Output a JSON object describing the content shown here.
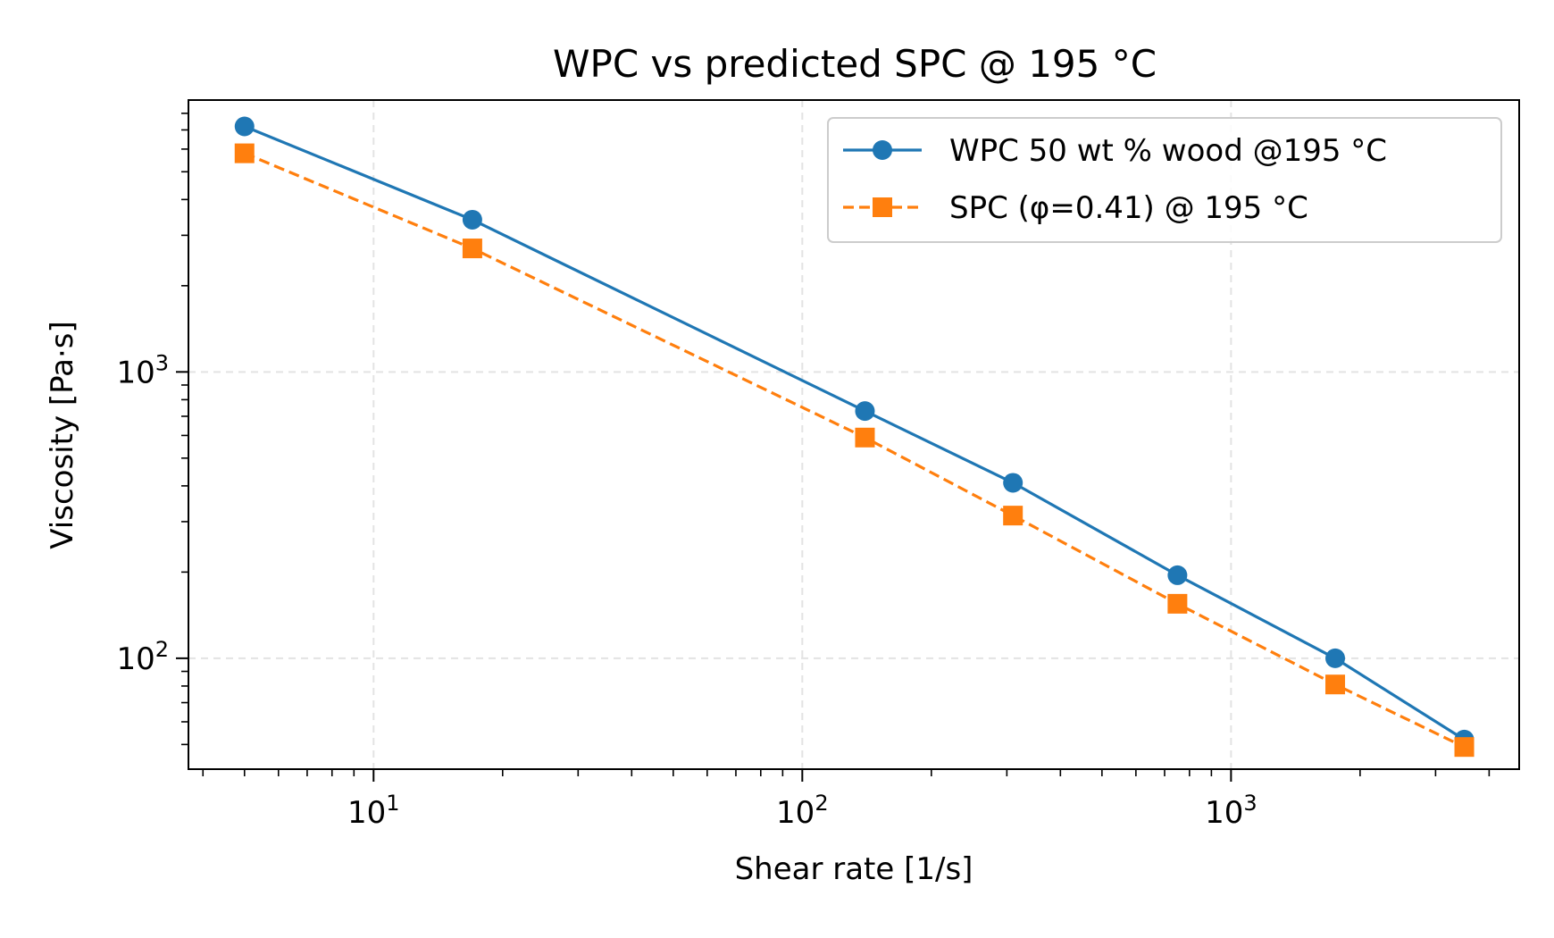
{
  "chart_data": {
    "type": "line",
    "title": "WPC vs predicted SPC @ 195 °C",
    "xlabel": "Shear rate [1/s]",
    "ylabel": "Viscosity [Pa·s]",
    "xscale": "log",
    "yscale": "log",
    "xlim": [
      3.7,
      4700
    ],
    "ylim": [
      41,
      8900
    ],
    "grid": true,
    "legend_position": "top-right",
    "x_ticks": [
      {
        "value": 10,
        "base": "10",
        "exp": "1"
      },
      {
        "value": 100,
        "base": "10",
        "exp": "2"
      },
      {
        "value": 1000,
        "base": "10",
        "exp": "3"
      }
    ],
    "y_ticks": [
      {
        "value": 100,
        "base": "10",
        "exp": "2"
      },
      {
        "value": 1000,
        "base": "10",
        "exp": "3"
      }
    ],
    "series": [
      {
        "name": "WPC 50 wt % wood @195 °C",
        "color": "#1f77b4",
        "marker": "circle",
        "linestyle": "solid",
        "x": [
          5,
          17,
          140,
          310,
          750,
          1750,
          3500
        ],
        "y": [
          7200,
          3400,
          730,
          410,
          195,
          100,
          52
        ]
      },
      {
        "name": "SPC (φ=0.41) @ 195 °C",
        "color": "#ff7f0e",
        "marker": "square",
        "linestyle": "dashed",
        "x": [
          5,
          17,
          140,
          310,
          750,
          1750,
          3500
        ],
        "y": [
          5800,
          2700,
          590,
          315,
          155,
          81,
          49
        ]
      }
    ]
  }
}
